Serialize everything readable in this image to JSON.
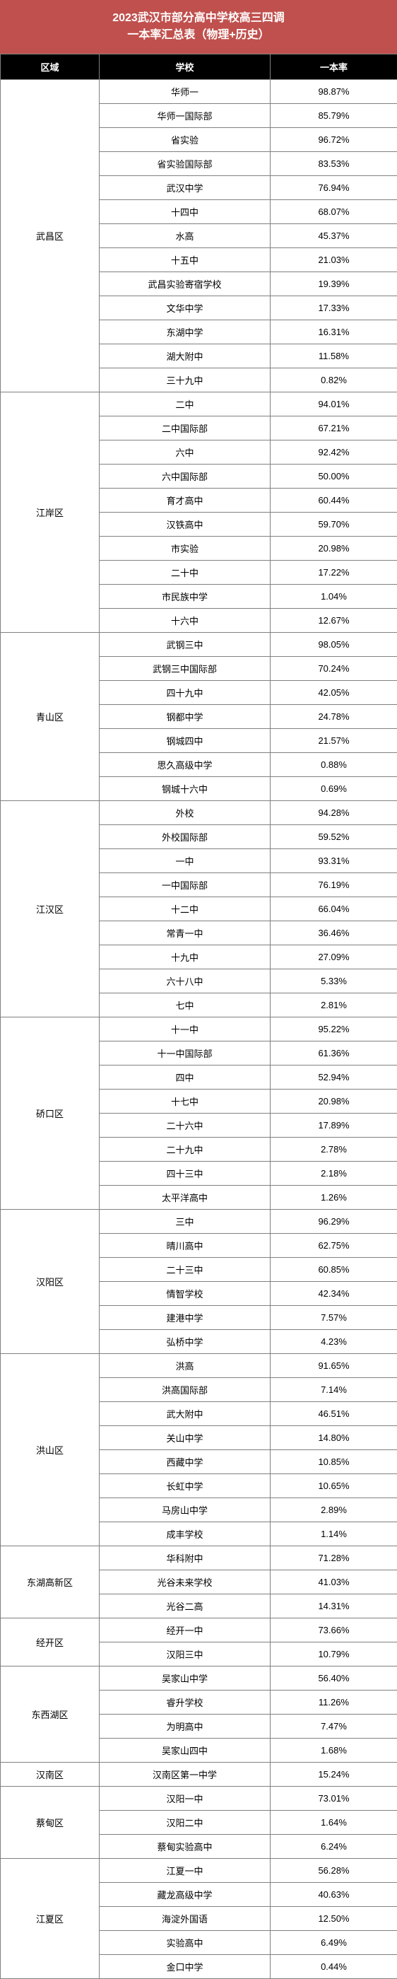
{
  "title_line1": "2023武汉市部分高中学校高三四调",
  "title_line2": "一本率汇总表（物理+历史）",
  "columns": {
    "region": "区域",
    "school": "学校",
    "rate": "一本率"
  },
  "regions": [
    {
      "name": "武昌区",
      "schools": [
        {
          "name": "华师一",
          "rate": "98.87%"
        },
        {
          "name": "华师一国际部",
          "rate": "85.79%"
        },
        {
          "name": "省实验",
          "rate": "96.72%"
        },
        {
          "name": "省实验国际部",
          "rate": "83.53%"
        },
        {
          "name": "武汉中学",
          "rate": "76.94%"
        },
        {
          "name": "十四中",
          "rate": "68.07%"
        },
        {
          "name": "水高",
          "rate": "45.37%"
        },
        {
          "name": "十五中",
          "rate": "21.03%"
        },
        {
          "name": "武昌实验寄宿学校",
          "rate": "19.39%"
        },
        {
          "name": "文华中学",
          "rate": "17.33%"
        },
        {
          "name": "东湖中学",
          "rate": "16.31%"
        },
        {
          "name": "湖大附中",
          "rate": "11.58%"
        },
        {
          "name": "三十九中",
          "rate": "0.82%"
        }
      ]
    },
    {
      "name": "江岸区",
      "schools": [
        {
          "name": "二中",
          "rate": "94.01%"
        },
        {
          "name": "二中国际部",
          "rate": "67.21%"
        },
        {
          "name": "六中",
          "rate": "92.42%"
        },
        {
          "name": "六中国际部",
          "rate": "50.00%"
        },
        {
          "name": "育才高中",
          "rate": "60.44%"
        },
        {
          "name": "汉铁高中",
          "rate": "59.70%"
        },
        {
          "name": "市实验",
          "rate": "20.98%"
        },
        {
          "name": "二十中",
          "rate": "17.22%"
        },
        {
          "name": "市民族中学",
          "rate": "1.04%"
        },
        {
          "name": "十六中",
          "rate": "12.67%"
        }
      ]
    },
    {
      "name": "青山区",
      "schools": [
        {
          "name": "武钢三中",
          "rate": "98.05%"
        },
        {
          "name": "武钢三中国际部",
          "rate": "70.24%"
        },
        {
          "name": "四十九中",
          "rate": "42.05%"
        },
        {
          "name": "钢都中学",
          "rate": "24.78%"
        },
        {
          "name": "钢城四中",
          "rate": "21.57%"
        },
        {
          "name": "思久高级中学",
          "rate": "0.88%"
        },
        {
          "name": "钢城十六中",
          "rate": "0.69%"
        }
      ]
    },
    {
      "name": "江汉区",
      "schools": [
        {
          "name": "外校",
          "rate": "94.28%"
        },
        {
          "name": "外校国际部",
          "rate": "59.52%"
        },
        {
          "name": "一中",
          "rate": "93.31%"
        },
        {
          "name": "一中国际部",
          "rate": "76.19%"
        },
        {
          "name": "十二中",
          "rate": "66.04%"
        },
        {
          "name": "常青一中",
          "rate": "36.46%"
        },
        {
          "name": "十九中",
          "rate": "27.09%"
        },
        {
          "name": "六十八中",
          "rate": "5.33%"
        },
        {
          "name": "七中",
          "rate": "2.81%"
        }
      ]
    },
    {
      "name": "硚口区",
      "schools": [
        {
          "name": "十一中",
          "rate": "95.22%"
        },
        {
          "name": "十一中国际部",
          "rate": "61.36%"
        },
        {
          "name": "四中",
          "rate": "52.94%"
        },
        {
          "name": "十七中",
          "rate": "20.98%"
        },
        {
          "name": "二十六中",
          "rate": "17.89%"
        },
        {
          "name": "二十九中",
          "rate": "2.78%"
        },
        {
          "name": "四十三中",
          "rate": "2.18%"
        },
        {
          "name": "太平洋高中",
          "rate": "1.26%"
        }
      ]
    },
    {
      "name": "汉阳区",
      "schools": [
        {
          "name": "三中",
          "rate": "96.29%"
        },
        {
          "name": "晴川高中",
          "rate": "62.75%"
        },
        {
          "name": "二十三中",
          "rate": "60.85%"
        },
        {
          "name": "情智学校",
          "rate": "42.34%"
        },
        {
          "name": "建港中学",
          "rate": "7.57%"
        },
        {
          "name": "弘桥中学",
          "rate": "4.23%"
        }
      ]
    },
    {
      "name": "洪山区",
      "schools": [
        {
          "name": "洪高",
          "rate": "91.65%"
        },
        {
          "name": "洪高国际部",
          "rate": "7.14%"
        },
        {
          "name": "武大附中",
          "rate": "46.51%"
        },
        {
          "name": "关山中学",
          "rate": "14.80%"
        },
        {
          "name": "西藏中学",
          "rate": "10.85%"
        },
        {
          "name": "长虹中学",
          "rate": "10.65%"
        },
        {
          "name": "马房山中学",
          "rate": "2.89%"
        },
        {
          "name": "成丰学校",
          "rate": "1.14%"
        }
      ]
    },
    {
      "name": "东湖高新区",
      "schools": [
        {
          "name": "华科附中",
          "rate": "71.28%"
        },
        {
          "name": "光谷未来学校",
          "rate": "41.03%"
        },
        {
          "name": "光谷二高",
          "rate": "14.31%"
        }
      ]
    },
    {
      "name": "经开区",
      "schools": [
        {
          "name": "经开一中",
          "rate": "73.66%"
        },
        {
          "name": "汉阳三中",
          "rate": "10.79%"
        }
      ]
    },
    {
      "name": "东西湖区",
      "schools": [
        {
          "name": "吴家山中学",
          "rate": "56.40%"
        },
        {
          "name": "睿升学校",
          "rate": "11.26%"
        },
        {
          "name": "为明高中",
          "rate": "7.47%"
        },
        {
          "name": "吴家山四中",
          "rate": "1.68%"
        }
      ]
    },
    {
      "name": "汉南区",
      "schools": [
        {
          "name": "汉南区第一中学",
          "rate": "15.24%"
        }
      ]
    },
    {
      "name": "蔡甸区",
      "schools": [
        {
          "name": "汉阳一中",
          "rate": "73.01%"
        },
        {
          "name": "汉阳二中",
          "rate": "1.64%"
        },
        {
          "name": "蔡甸实验高中",
          "rate": "6.24%"
        }
      ]
    },
    {
      "name": "江夏区",
      "schools": [
        {
          "name": "江夏一中",
          "rate": "56.28%"
        },
        {
          "name": "藏龙高级中学",
          "rate": "40.63%"
        },
        {
          "name": "海淀外国语",
          "rate": "12.50%"
        },
        {
          "name": "实验高中",
          "rate": "6.49%"
        },
        {
          "name": "金口中学",
          "rate": "0.44%"
        }
      ]
    }
  ]
}
